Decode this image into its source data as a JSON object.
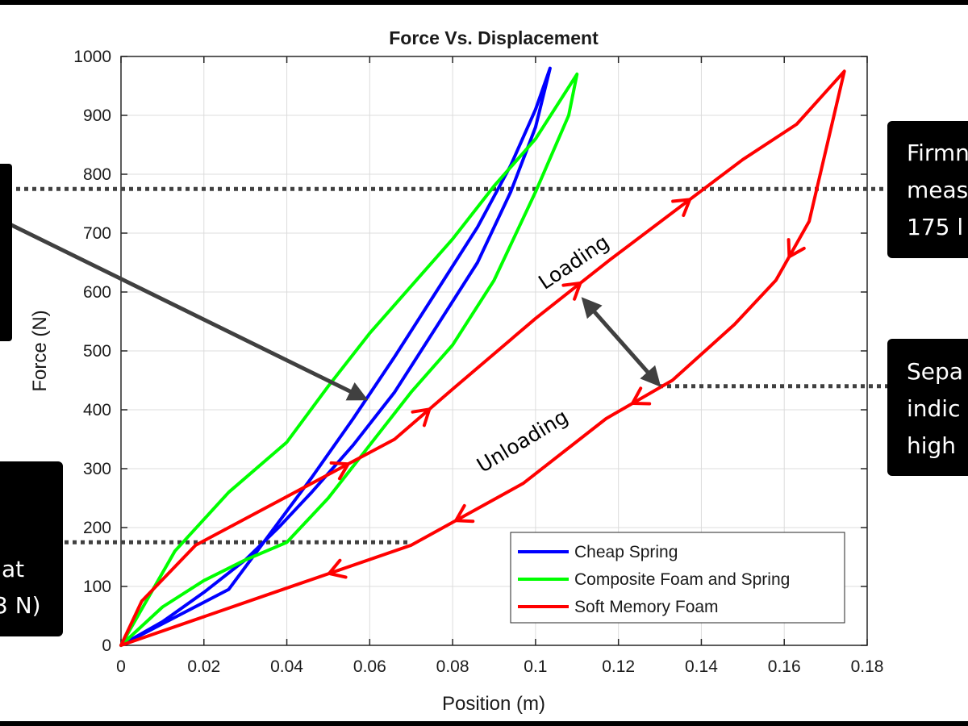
{
  "chart_data": {
    "type": "line",
    "title": "Force Vs. Displacement",
    "xlabel": "Position (m)",
    "ylabel": "Force (N)",
    "xlim": [
      0,
      0.18
    ],
    "ylim": [
      0,
      1000
    ],
    "xticks": [
      "0",
      "0.02",
      "0.04",
      "0.06",
      "0.08",
      "0.1",
      "0.12",
      "0.14",
      "0.16",
      "0.18"
    ],
    "yticks": [
      "0",
      "100",
      "200",
      "300",
      "400",
      "500",
      "600",
      "700",
      "800",
      "900",
      "1000"
    ],
    "grid": true,
    "legend_position": "bottom-right",
    "series": [
      {
        "name": "Cheap Spring",
        "color": "#0000ff",
        "x": [
          0,
          0.026,
          0.036,
          0.046,
          0.056,
          0.066,
          0.076,
          0.086,
          0.094,
          0.1,
          0.1035,
          0.1,
          0.094,
          0.086,
          0.076,
          0.066,
          0.056,
          0.046,
          0.038,
          0.03,
          0.02,
          0.01,
          0
        ],
        "y": [
          0,
          95,
          190,
          285,
          385,
          490,
          600,
          710,
          815,
          910,
          980,
          880,
          770,
          650,
          540,
          430,
          340,
          260,
          200,
          145,
          90,
          40,
          0
        ]
      },
      {
        "name": "Composite Foam and Spring",
        "color": "#00ff00",
        "x": [
          0,
          0.013,
          0.026,
          0.04,
          0.05,
          0.06,
          0.07,
          0.08,
          0.09,
          0.1,
          0.11,
          0.108,
          0.1,
          0.09,
          0.08,
          0.07,
          0.06,
          0.05,
          0.04,
          0.03,
          0.02,
          0.01,
          0
        ],
        "y": [
          0,
          160,
          260,
          345,
          440,
          530,
          610,
          690,
          780,
          860,
          970,
          900,
          770,
          620,
          510,
          430,
          340,
          250,
          175,
          145,
          110,
          65,
          0
        ]
      },
      {
        "name": "Soft Memory Foam",
        "color": "#ff0000",
        "x": [
          0,
          0.005,
          0.018,
          0.038,
          0.066,
          0.08,
          0.1,
          0.118,
          0.15,
          0.163,
          0.1745,
          0.172,
          0.166,
          0.158,
          0.148,
          0.133,
          0.117,
          0.097,
          0.07,
          0.037,
          0
        ],
        "y": [
          0,
          75,
          170,
          245,
          350,
          435,
          555,
          655,
          825,
          885,
          975,
          900,
          720,
          620,
          545,
          450,
          385,
          275,
          170,
          90,
          0
        ]
      }
    ],
    "annotations": [
      {
        "text": "Loading"
      },
      {
        "text": "Unloading"
      }
    ],
    "reference_lines": [
      {
        "y": 775
      },
      {
        "y": 175
      },
      {
        "y": 440
      }
    ]
  },
  "callouts": {
    "top_right": [
      "Firmn",
      "meas",
      "175 l"
    ],
    "middle_right": [
      "Sepa",
      "indic",
      "high"
    ],
    "bottom_left": [
      "at",
      "3 N)"
    ]
  }
}
